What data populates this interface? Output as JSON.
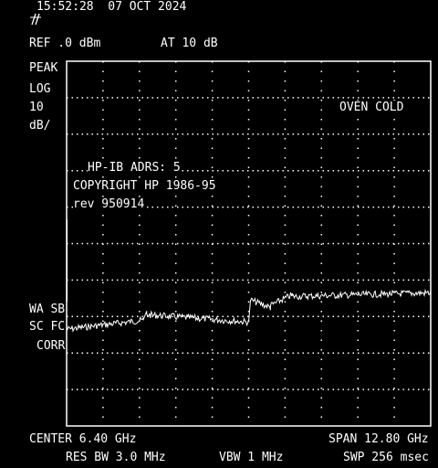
{
  "header": {
    "timestamp": "15:52:28  07 OCT 2024",
    "logo_icon": "hp-logo-icon",
    "ref_level": "REF .0 dBm",
    "attenuation": "AT 10 dB"
  },
  "left_panel": {
    "detector": "PEAK",
    "scale_mode": "LOG",
    "scale_value": "10",
    "scale_unit": "dB/",
    "wa_sb": "WA SB",
    "sc_fc": "SC FC",
    "corr": "CORR"
  },
  "messages": {
    "oven_status": "OVEN COLD",
    "hpib_address": "HP-IB ADRS: 5",
    "copyright": "COPYRIGHT HP 1986-95",
    "revision": "rev 950914"
  },
  "footer": {
    "center_freq": "CENTER 6.40 GHz",
    "span": "SPAN 12.80 GHz",
    "res_bw": "RES BW 3.0 MHz",
    "vbw": "VBW 1 MHz",
    "sweep": "SWP 256 msec"
  },
  "colors": {
    "background": "#000000",
    "foreground": "#ffffff"
  },
  "trace": {
    "segments": [
      {
        "x_start": 0.0,
        "x_end": 0.21,
        "level_start": 7.35,
        "level_end": 7.1
      },
      {
        "x_start": 0.21,
        "x_end": 0.22,
        "level_start": 7.1,
        "level_end": 6.85
      },
      {
        "x_start": 0.22,
        "x_end": 0.5,
        "level_start": 6.95,
        "level_end": 7.15
      },
      {
        "x_start": 0.5,
        "x_end": 0.505,
        "level_start": 7.15,
        "level_end": 6.55
      },
      {
        "x_start": 0.505,
        "x_end": 0.56,
        "level_start": 6.55,
        "level_end": 6.75
      },
      {
        "x_start": 0.56,
        "x_end": 0.62,
        "level_start": 6.7,
        "level_end": 6.4
      },
      {
        "x_start": 0.62,
        "x_end": 1.0,
        "level_start": 6.45,
        "level_end": 6.35
      }
    ],
    "noise": 0.09
  }
}
